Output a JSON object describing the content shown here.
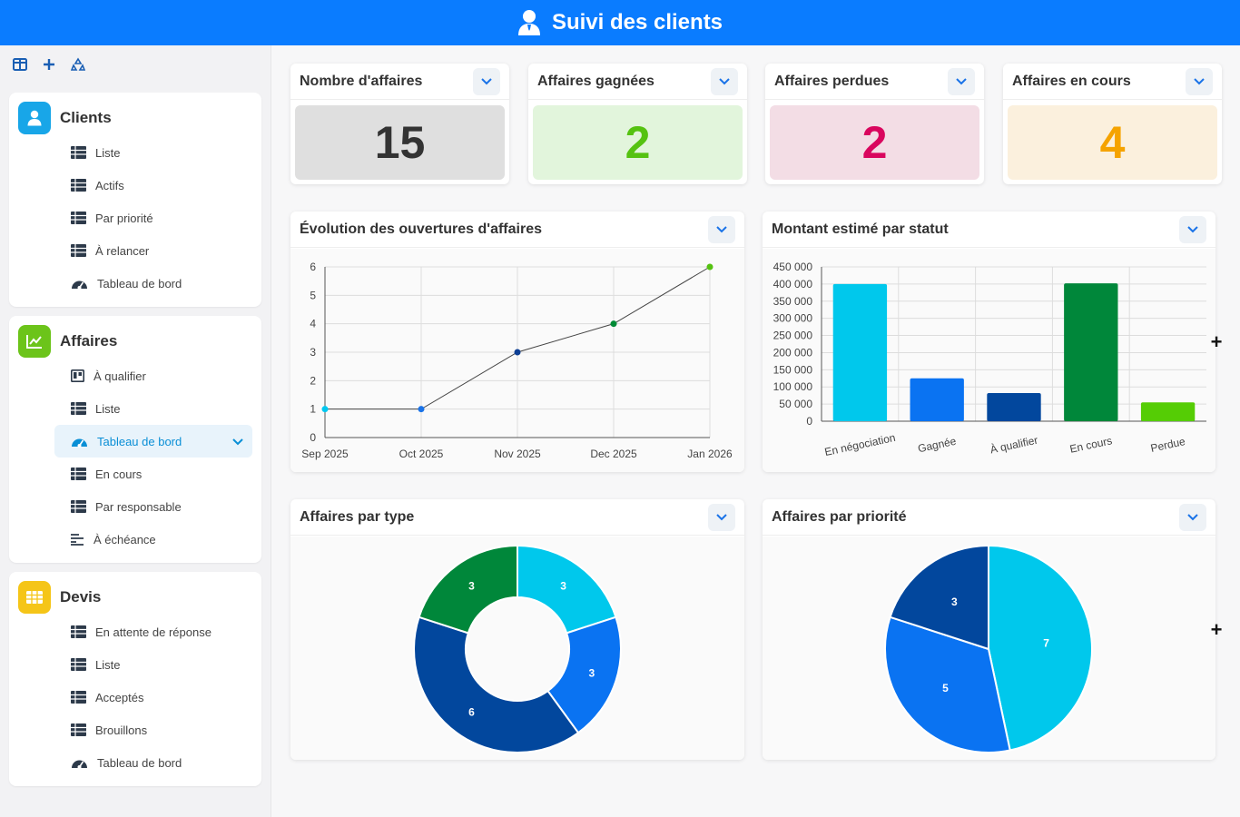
{
  "header": {
    "title": "Suivi des clients",
    "icon": "user-tie-icon"
  },
  "sidebar": {
    "toolbar": [
      "layout-icon",
      "plus-icon",
      "recycle-icon"
    ],
    "sections": [
      {
        "title": "Clients",
        "color": "#18a6e8",
        "items": [
          {
            "label": "Liste",
            "icon": "table-icon"
          },
          {
            "label": "Actifs",
            "icon": "table-icon"
          },
          {
            "label": "Par priorité",
            "icon": "table-icon"
          },
          {
            "label": "À relancer",
            "icon": "table-icon"
          },
          {
            "label": "Tableau de bord",
            "icon": "dashboard-icon"
          }
        ]
      },
      {
        "title": "Affaires",
        "color": "#6cc41a",
        "items": [
          {
            "label": "À qualifier",
            "icon": "kanban-icon"
          },
          {
            "label": "Liste",
            "icon": "table-icon"
          },
          {
            "label": "Tableau de bord",
            "icon": "dashboard-icon",
            "active": true
          },
          {
            "label": "En cours",
            "icon": "table-icon"
          },
          {
            "label": "Par responsable",
            "icon": "table-icon"
          },
          {
            "label": "À échéance",
            "icon": "timeline-icon"
          }
        ]
      },
      {
        "title": "Devis",
        "color": "#f5c518",
        "items": [
          {
            "label": "En attente de réponse",
            "icon": "table-icon"
          },
          {
            "label": "Liste",
            "icon": "table-icon"
          },
          {
            "label": "Acceptés",
            "icon": "table-icon"
          },
          {
            "label": "Brouillons",
            "icon": "table-icon"
          },
          {
            "label": "Tableau de bord",
            "icon": "dashboard-icon"
          }
        ]
      }
    ]
  },
  "kpis": [
    {
      "title": "Nombre d'affaires",
      "value": "15",
      "bg": "#dfdfdf",
      "fg": "#333333"
    },
    {
      "title": "Affaires gagnées",
      "value": "2",
      "bg": "#e2f5dc",
      "fg": "#55c211"
    },
    {
      "title": "Affaires perdues",
      "value": "2",
      "bg": "#f3dde5",
      "fg": "#d9065e"
    },
    {
      "title": "Affaires en cours",
      "value": "4",
      "bg": "#fbf0dd",
      "fg": "#f5a300"
    }
  ],
  "charts": {
    "line": {
      "title": "Évolution des ouvertures d'affaires"
    },
    "bar": {
      "title": "Montant estimé par statut"
    },
    "donut": {
      "title": "Affaires par type"
    },
    "pie": {
      "title": "Affaires par priorité"
    }
  },
  "chart_data": [
    {
      "type": "line",
      "title": "Évolution des ouvertures d'affaires",
      "categories": [
        "Sep 2025",
        "Oct 2025",
        "Nov 2025",
        "Dec 2025",
        "Jan 2026"
      ],
      "values": [
        1,
        1,
        3,
        4,
        6
      ],
      "point_colors": [
        "#00c8f0",
        "#1a73e8",
        "#0d3f94",
        "#008a35",
        "#55c211"
      ],
      "ylim": [
        0,
        6
      ],
      "yticks": [
        "0",
        "1",
        "2",
        "3",
        "4",
        "5",
        "6"
      ],
      "grid": true
    },
    {
      "type": "bar",
      "title": "Montant estimé par statut",
      "categories": [
        "En négociation",
        "Gagnée",
        "À qualifier",
        "En cours",
        "Perdue"
      ],
      "values": [
        400000,
        125000,
        82000,
        402000,
        55000
      ],
      "colors": [
        "#00c8ec",
        "#0a73f2",
        "#02479d",
        "#00873a",
        "#55cd05"
      ],
      "ylim": [
        0,
        450000
      ],
      "yticks": [
        "0",
        "50 000",
        "100 000",
        "150 000",
        "200 000",
        "250 000",
        "300 000",
        "350 000",
        "400 000",
        "450 000"
      ],
      "grid": true
    },
    {
      "type": "pie",
      "variant": "donut",
      "title": "Affaires par type",
      "values": [
        3,
        3,
        6,
        3
      ],
      "labels": [
        "3",
        "3",
        "6",
        "3"
      ],
      "colors": [
        "#00c8ec",
        "#0a73f2",
        "#02479d",
        "#00873a"
      ]
    },
    {
      "type": "pie",
      "title": "Affaires par priorité",
      "values": [
        7,
        5,
        3
      ],
      "labels": [
        "7",
        "5",
        "3"
      ],
      "colors": [
        "#00c8ec",
        "#0a73f2",
        "#02479d"
      ]
    }
  ]
}
